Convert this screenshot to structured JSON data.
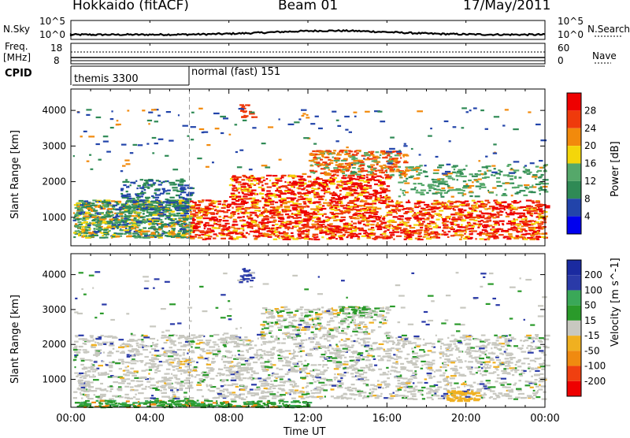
{
  "header": {
    "title": "Hokkaido (fitACF)",
    "beam": "Beam 01",
    "date": "17/May/2011"
  },
  "sky_panel": {
    "left_label": "N.Sky",
    "left_ticks": [
      "10^5",
      "10^0"
    ],
    "right_ticks": [
      "10^5",
      "10^0"
    ],
    "right_label": "N.Search"
  },
  "freq_panel": {
    "left_label_1": "Freq.",
    "left_label_2": "[MHz]",
    "left_ticks": [
      "18",
      "8"
    ],
    "right_ticks": [
      "60",
      "0"
    ],
    "right_label": "Nave"
  },
  "cpid_panel": {
    "label": "CPID",
    "mode_1": "themis 3300",
    "mode_2": "normal (fast) 151"
  },
  "colors": {
    "power": [
      "#0000ee",
      "#2244aa",
      "#2f8a55",
      "#55a86a",
      "#f4d60a",
      "#f28a0c",
      "#ef3a0c",
      "#ee0000"
    ],
    "velocity": [
      "#ee0000",
      "#f04010",
      "#f08a10",
      "#f0b020",
      "#c8c8c0",
      "#2a9a2a",
      "#3aa858",
      "#2a3aa8",
      "#1a2aa0"
    ]
  },
  "chart_data": [
    {
      "type": "heatmap",
      "xlabel": "",
      "ylabel": "Slant Range [km]",
      "x_ticks": [
        "00:00",
        "04:00",
        "08:00",
        "12:00",
        "16:00",
        "20:00",
        "00:00"
      ],
      "y_ticks": [
        1000,
        2000,
        3000,
        4000
      ],
      "ylim": [
        200,
        4600
      ],
      "colorbar": {
        "label": "Power [dB]",
        "ticks": [
          4,
          8,
          12,
          16,
          20,
          24,
          28
        ]
      },
      "regions": [
        {
          "t": [
            0.0,
            6.0
          ],
          "r": [
            450,
            1500
          ],
          "value": 12
        },
        {
          "t": [
            6.0,
            24.0
          ],
          "r": [
            400,
            1600
          ],
          "value": 24
        },
        {
          "t": [
            10.0,
            16.0
          ],
          "r": [
            1500,
            2900
          ],
          "value": 24
        },
        {
          "t": [
            8.5,
            9.2
          ],
          "r": [
            3800,
            4200
          ],
          "value": 26
        }
      ]
    },
    {
      "type": "heatmap",
      "xlabel": "Time UT",
      "ylabel": "Slant Range [km]",
      "x_ticks": [
        "00:00",
        "04:00",
        "08:00",
        "12:00",
        "16:00",
        "20:00",
        "00:00"
      ],
      "y_ticks": [
        1000,
        2000,
        3000,
        4000
      ],
      "ylim": [
        200,
        4600
      ],
      "colorbar": {
        "label": "Velocity [m s^-1]",
        "ticks": [
          200,
          100,
          50,
          15,
          -15,
          -50,
          -100,
          -200
        ]
      },
      "regions": [
        {
          "t": [
            0.0,
            24.0
          ],
          "r": [
            400,
            2400
          ],
          "value": 0
        },
        {
          "t": [
            8.5,
            9.2
          ],
          "r": [
            3800,
            4200
          ],
          "value": 200
        },
        {
          "t": [
            13.5,
            15.0
          ],
          "r": [
            2900,
            3100
          ],
          "value": 60
        },
        {
          "t": [
            19.0,
            20.5
          ],
          "r": [
            400,
            700
          ],
          "value": -40
        }
      ]
    }
  ]
}
